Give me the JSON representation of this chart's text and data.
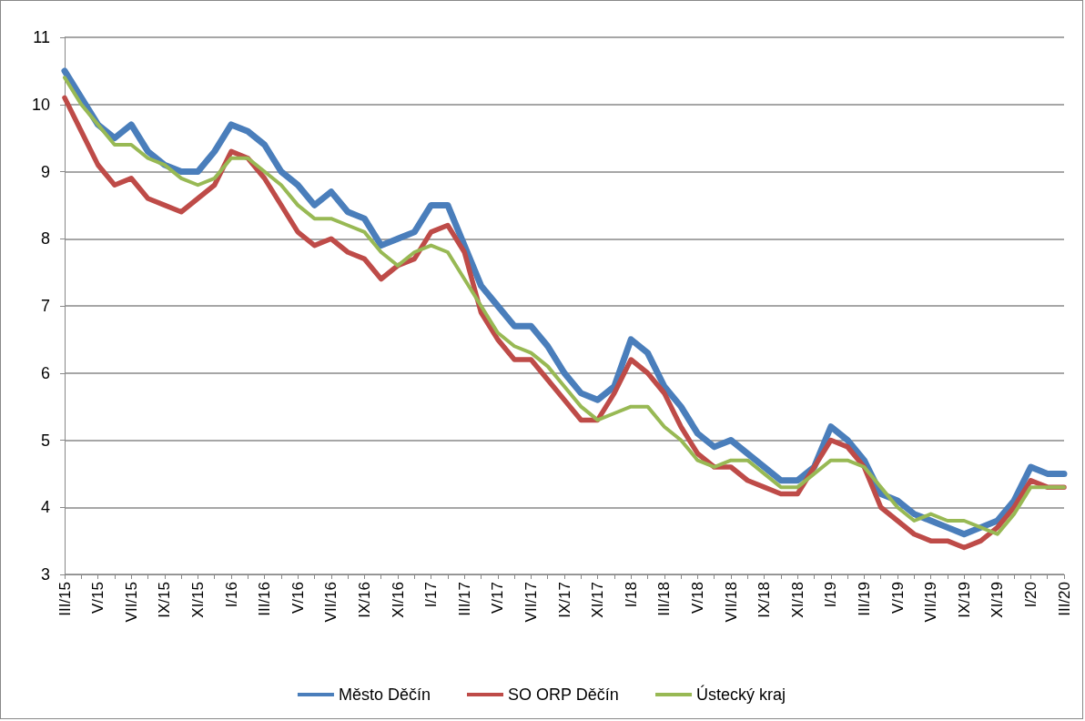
{
  "chart_data": {
    "type": "line",
    "categories": [
      "III/15",
      null,
      "V/15",
      null,
      "VII/15",
      null,
      "IX/15",
      null,
      "XI/15",
      null,
      "I/16",
      null,
      "III/16",
      null,
      "V/16",
      null,
      "VII/16",
      null,
      "IX/16",
      null,
      "XI/16",
      null,
      "I/17",
      null,
      "III/17",
      null,
      "V/17",
      null,
      "VII/17",
      null,
      "IX/17",
      null,
      "XI/17",
      null,
      "I/18",
      null,
      "III/18",
      null,
      "V/18",
      null,
      "VII/18",
      null,
      "IX/18",
      null,
      "XI/18",
      null,
      "I/19",
      null,
      "III/19",
      null,
      "V/19",
      null,
      "VII/19",
      null,
      "IX/19",
      null,
      "XI/19",
      null,
      "I/20",
      null,
      "III/20"
    ],
    "series": [
      {
        "name": "Město Děčín",
        "color": "#4a7ebb",
        "values": [
          10.5,
          10.1,
          9.7,
          9.5,
          9.7,
          9.3,
          9.1,
          9.0,
          9.0,
          9.3,
          9.7,
          9.6,
          9.4,
          9.0,
          8.8,
          8.5,
          8.7,
          8.4,
          8.3,
          7.9,
          8.0,
          8.1,
          8.5,
          8.5,
          7.9,
          7.3,
          7.0,
          6.7,
          6.7,
          6.4,
          6.0,
          5.7,
          5.6,
          5.8,
          6.5,
          6.3,
          5.8,
          5.5,
          5.1,
          4.9,
          5.0,
          4.8,
          4.6,
          4.4,
          4.4,
          4.6,
          5.2,
          5.0,
          4.7,
          4.2,
          4.1,
          3.9,
          3.8,
          3.7,
          3.6,
          3.7,
          3.8,
          4.1,
          4.6,
          4.5,
          4.5
        ]
      },
      {
        "name": "SO ORP Děčín",
        "color": "#be4b48",
        "values": [
          10.1,
          9.6,
          9.1,
          8.8,
          8.9,
          8.6,
          8.5,
          8.4,
          8.6,
          8.8,
          9.3,
          9.2,
          8.9,
          8.5,
          8.1,
          7.9,
          8.0,
          7.8,
          7.7,
          7.4,
          7.6,
          7.7,
          8.1,
          8.2,
          7.8,
          6.9,
          6.5,
          6.2,
          6.2,
          5.9,
          5.6,
          5.3,
          5.3,
          5.7,
          6.2,
          6.0,
          5.7,
          5.2,
          4.8,
          4.6,
          4.6,
          4.4,
          4.3,
          4.2,
          4.2,
          4.6,
          5.0,
          4.9,
          4.6,
          4.0,
          3.8,
          3.6,
          3.5,
          3.5,
          3.4,
          3.5,
          3.7,
          4.0,
          4.4,
          4.3,
          4.3
        ]
      },
      {
        "name": "Ústecký kraj",
        "color": "#98b954",
        "values": [
          10.4,
          10.0,
          9.7,
          9.4,
          9.4,
          9.2,
          9.1,
          8.9,
          8.8,
          8.9,
          9.2,
          9.2,
          9.0,
          8.8,
          8.5,
          8.3,
          8.3,
          8.2,
          8.1,
          7.8,
          7.6,
          7.8,
          7.9,
          7.8,
          7.4,
          7.0,
          6.6,
          6.4,
          6.3,
          6.1,
          5.8,
          5.5,
          5.3,
          5.4,
          5.5,
          5.5,
          5.2,
          5.0,
          4.7,
          4.6,
          4.7,
          4.7,
          4.5,
          4.3,
          4.3,
          4.5,
          4.7,
          4.7,
          4.6,
          4.3,
          4.0,
          3.8,
          3.9,
          3.8,
          3.8,
          3.7,
          3.6,
          3.9,
          4.3,
          4.3,
          4.3
        ]
      }
    ],
    "ylim": [
      3,
      11
    ],
    "yticks": [
      3,
      4,
      5,
      6,
      7,
      8,
      9,
      10,
      11
    ],
    "grid": "y",
    "legend": "bottom",
    "marker": "none",
    "line_style": "solid"
  }
}
